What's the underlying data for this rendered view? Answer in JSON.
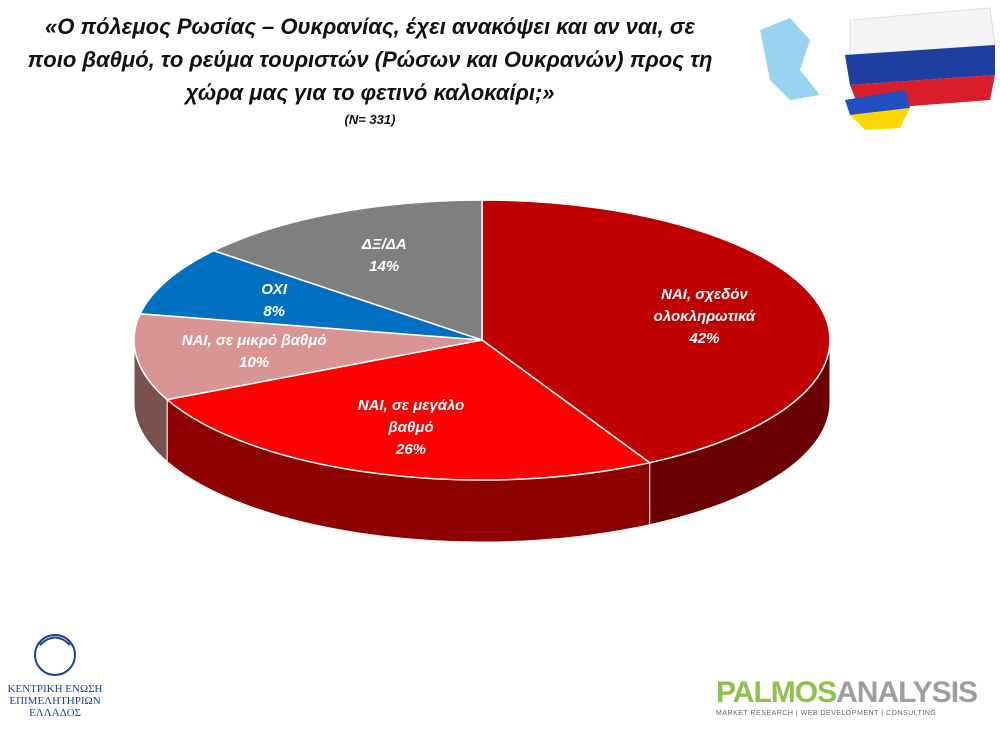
{
  "chart_data": {
    "type": "pie",
    "title": "«Ο πόλεμος Ρωσίας – Ουκρανίας, έχει ανακόψει και αν ναι, σε ποιο βαθμό, το ρεύμα τουριστών (Ρώσων και Ουκρανών) προς τη χώρα μας για το φετινό καλοκαίρι;»",
    "subtitle": "(N= 331)",
    "categories": [
      "ΝΑΙ, σχεδόν ολοκληρωτικά",
      "ΝΑΙ, σε μεγάλο βαθμό",
      "ΝΑΙ, σε μικρό βαθμό",
      "ΟΧΙ",
      "ΔΞ/ΔΑ"
    ],
    "values": [
      42,
      26,
      10,
      8,
      14
    ],
    "value_labels": [
      "42%",
      "26%",
      "10%",
      "8%",
      "14%"
    ],
    "colors": [
      "#c00000",
      "#ff0000",
      "#d99594",
      "#0070c0",
      "#7f7f7f"
    ]
  },
  "logos": {
    "left": "ΚΕΝΤΡΙΚΗ ΕΝΩΣΗ ΕΠΙΜΕΛΗΤΗΡΙΩΝ ΕΛΛΑΔΟΣ",
    "right_a": "PALMOS",
    "right_b": "ANALYSIS",
    "right_tagline": "MARKET RESEARCH | WEB DEVELOPMENT | CONSULTING"
  }
}
